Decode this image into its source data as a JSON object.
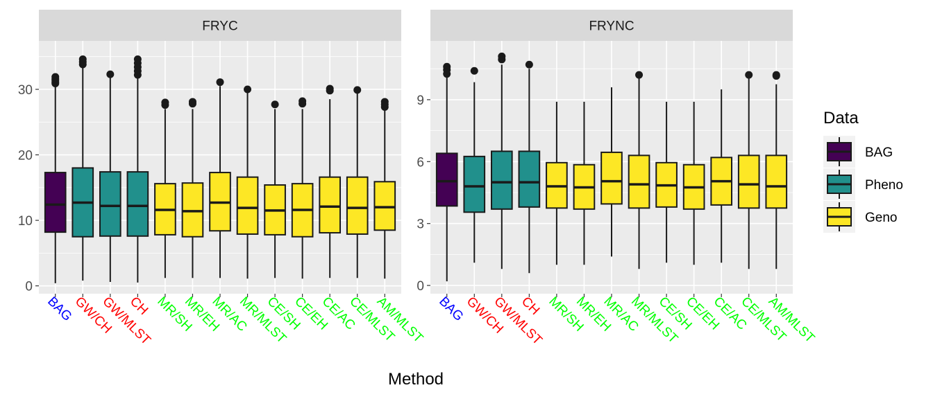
{
  "chart_data": [
    {
      "type": "boxplot",
      "panel": "FRYC",
      "categories": [
        "BAG",
        "GW/CH",
        "GW/MLST",
        "CH",
        "MR/SH",
        "MR/EH",
        "MR/AC",
        "MR/MLST",
        "CE/SH",
        "CE/EH",
        "CE/AC",
        "CE/MLST",
        "AM/MLST"
      ],
      "groups": [
        "BAG",
        "Pheno",
        "Pheno",
        "Pheno",
        "Geno",
        "Geno",
        "Geno",
        "Geno",
        "Geno",
        "Geno",
        "Geno",
        "Geno",
        "Geno"
      ],
      "min": [
        0.4,
        0.8,
        0.6,
        0.5,
        1.2,
        1.2,
        1.2,
        1.1,
        1.2,
        1.1,
        1.2,
        1.2,
        1.1
      ],
      "q1": [
        8.2,
        7.5,
        7.6,
        7.6,
        7.8,
        7.5,
        8.4,
        7.9,
        7.8,
        7.5,
        8.1,
        7.9,
        8.5
      ],
      "median": [
        12.4,
        12.7,
        12.2,
        12.2,
        11.6,
        11.4,
        12.7,
        11.9,
        11.5,
        11.6,
        12.1,
        11.9,
        12.0
      ],
      "q3": [
        17.3,
        18.0,
        17.4,
        17.4,
        15.6,
        15.7,
        17.3,
        16.6,
        15.4,
        15.6,
        16.6,
        16.6,
        15.9
      ],
      "max": [
        30.5,
        33.5,
        32.0,
        32.0,
        27.0,
        27.0,
        30.5,
        29.5,
        27.0,
        27.0,
        28.5,
        29.5,
        27.0
      ],
      "outliers": [
        [
          30.9,
          31.1,
          31.4,
          31.6,
          31.9
        ],
        [
          33.8,
          34.2,
          34.6
        ],
        [
          32.3
        ],
        [
          32.2,
          32.8,
          33.4,
          34.0,
          34.6
        ],
        [
          27.6,
          28.0
        ],
        [
          27.8,
          28.1
        ],
        [
          31.1
        ],
        [
          30.0
        ],
        [
          27.7
        ],
        [
          27.8,
          28.2
        ],
        [
          29.8,
          30.1
        ],
        [
          29.9
        ],
        [
          27.3,
          27.7,
          28.1
        ]
      ],
      "ylim": [
        -1.2,
        37.4
      ],
      "yticks": [
        0,
        10,
        20,
        30
      ],
      "grid": true
    },
    {
      "type": "boxplot",
      "panel": "FRYNC",
      "categories": [
        "BAG",
        "GW/CH",
        "GW/MLST",
        "CH",
        "MR/SH",
        "MR/EH",
        "MR/AC",
        "MR/MLST",
        "CE/SH",
        "CE/EH",
        "CE/AC",
        "CE/MLST",
        "AM/MLST"
      ],
      "groups": [
        "BAG",
        "Pheno",
        "Pheno",
        "Pheno",
        "Geno",
        "Geno",
        "Geno",
        "Geno",
        "Geno",
        "Geno",
        "Geno",
        "Geno",
        "Geno"
      ],
      "min": [
        0.2,
        1.1,
        0.8,
        0.6,
        1.0,
        1.0,
        1.4,
        0.8,
        1.1,
        1.0,
        1.1,
        0.8,
        0.8
      ],
      "q1": [
        3.85,
        3.55,
        3.7,
        3.8,
        3.75,
        3.7,
        3.95,
        3.75,
        3.8,
        3.7,
        3.9,
        3.75,
        3.75
      ],
      "median": [
        5.05,
        4.8,
        5.0,
        5.0,
        4.8,
        4.75,
        5.05,
        4.9,
        4.85,
        4.75,
        5.05,
        4.9,
        4.8
      ],
      "q3": [
        6.4,
        6.25,
        6.5,
        6.5,
        5.95,
        5.85,
        6.45,
        6.3,
        5.95,
        5.85,
        6.2,
        6.3,
        6.3
      ],
      "max": [
        10.1,
        9.85,
        10.7,
        10.5,
        8.9,
        8.9,
        9.6,
        10.1,
        8.9,
        8.9,
        9.5,
        10.1,
        9.75
      ],
      "outliers": [
        [
          10.25,
          10.45,
          10.6
        ],
        [
          10.4
        ],
        [
          10.95,
          11.1
        ],
        [
          10.7
        ],
        [],
        [],
        [],
        [
          10.2
        ],
        [],
        [],
        [],
        [
          10.2
        ],
        [
          10.15,
          10.2
        ]
      ],
      "ylim": [
        -0.4,
        11.85
      ],
      "yticks": [
        0,
        3,
        6,
        9
      ],
      "grid": true
    }
  ],
  "facets": [
    "FRYC",
    "FRYNC"
  ],
  "x_axis_title": "Method",
  "legend": {
    "title": "Data",
    "position": "right",
    "items": [
      {
        "label": "BAG",
        "color": "#440154"
      },
      {
        "label": "Pheno",
        "color": "#21908C"
      },
      {
        "label": "Geno",
        "color": "#FDE725"
      }
    ]
  },
  "category_label_colors": [
    "#0000FF",
    "#FF0000",
    "#FF0000",
    "#FF0000",
    "#00FF00",
    "#00FF00",
    "#00FF00",
    "#00FF00",
    "#00FF00",
    "#00FF00",
    "#00FF00",
    "#00FF00",
    "#00FF00"
  ],
  "colors": {
    "panel_bg": "#EBEBEB",
    "grid": "#FFFFFF",
    "strip_bg": "#D9D9D9",
    "box_line": "#1A1A1A"
  }
}
